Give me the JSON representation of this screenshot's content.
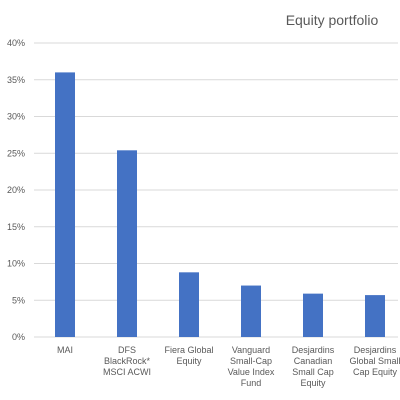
{
  "chart_data": {
    "type": "bar",
    "title": "Equity portfolio",
    "xlabel": "",
    "ylabel": "",
    "ylim": [
      0,
      40
    ],
    "y_ticks": [
      "0%",
      "5%",
      "10%",
      "15%",
      "20%",
      "25%",
      "30%",
      "35%",
      "40%"
    ],
    "y_tick_values": [
      0,
      5,
      10,
      15,
      20,
      25,
      30,
      35,
      40
    ],
    "grid": true,
    "legend": "none",
    "categories": [
      [
        "MAI"
      ],
      [
        "DFS",
        "BlackRock*",
        "MSCI ACWI"
      ],
      [
        "Fiera Global",
        "Equity"
      ],
      [
        "Vanguard",
        "Small-Cap",
        "Value Index",
        "Fund"
      ],
      [
        "Desjardins",
        "Canadian",
        "Small Cap",
        "Equity"
      ],
      [
        "Desjardins",
        "Global Small",
        "Cap Equity"
      ]
    ],
    "values": [
      36.0,
      25.4,
      8.8,
      7.0,
      5.9,
      5.7
    ],
    "bar_color": "#4472C4",
    "grid_color": "#D9D9D9"
  }
}
